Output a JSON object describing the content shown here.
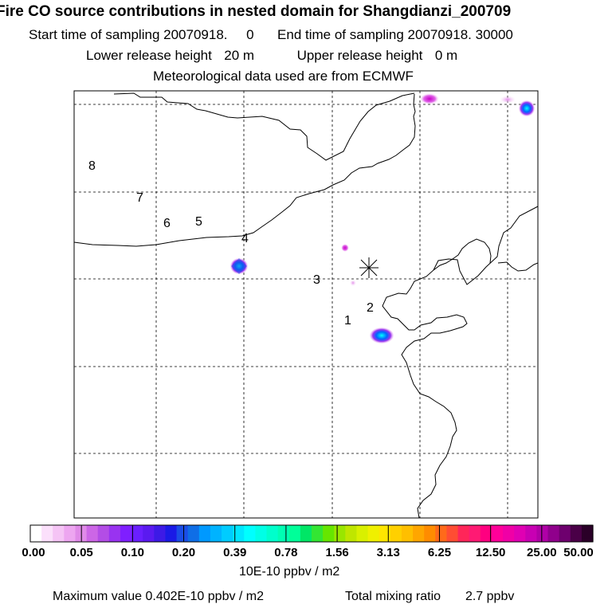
{
  "header": {
    "title": "Fire CO source contributions in nested domain for Shangdianzi_200709",
    "start_label": "Start time of sampling",
    "start_value": "20070918.     0",
    "end_label": "End time of sampling",
    "end_value": "20070918. 30000",
    "lower_label": "Lower release height",
    "lower_value": "20 m",
    "upper_label": "Upper release height",
    "upper_value": "0 m",
    "met_line": "Meteorological data used are from ECMWF"
  },
  "map": {
    "site_marker": "asterisk-receptor",
    "trajectory_labels": [
      "1",
      "2",
      "3",
      "4",
      "5",
      "6",
      "7",
      "8"
    ],
    "sources": [
      {
        "name": "source-nw-plume",
        "strength": "high"
      },
      {
        "name": "source-se-plume",
        "strength": "high"
      },
      {
        "name": "source-ne-corner",
        "strength": "high"
      },
      {
        "name": "source-top-center",
        "strength": "low"
      },
      {
        "name": "source-top-right-faint",
        "strength": "low"
      },
      {
        "name": "source-near-site-1",
        "strength": "low"
      },
      {
        "name": "source-near-site-2",
        "strength": "low"
      }
    ]
  },
  "colorbar": {
    "labels": [
      "0.00",
      "0.05",
      "0.10",
      "0.20",
      "0.39",
      "0.78",
      "1.56",
      "3.13",
      "6.25",
      "12.50",
      "25.00",
      "50.00"
    ],
    "colors": [
      "#ffffff",
      "#fbe0fb",
      "#f5c4f5",
      "#eda6f0",
      "#e08ae8",
      "#cc66e6",
      "#b34de6",
      "#9933f0",
      "#7f1fff",
      "#6a1fff",
      "#5a1af0",
      "#3d1ae6",
      "#1a1ae6",
      "#1a4de6",
      "#0f6ee6",
      "#0099ff",
      "#00b3ff",
      "#00ccff",
      "#00e6ff",
      "#00ffff",
      "#00ffe6",
      "#00ffcc",
      "#00ffb3",
      "#00ff99",
      "#00e666",
      "#33e633",
      "#66e600",
      "#99e600",
      "#bfe600",
      "#d9f000",
      "#f0f000",
      "#ffe600",
      "#ffd000",
      "#ffbf00",
      "#ffa600",
      "#ff8c00",
      "#ff6a1a",
      "#ff4d33",
      "#ff2659",
      "#ff1a73",
      "#ff0080",
      "#ff0099",
      "#f000a6",
      "#e000b3",
      "#c800b3",
      "#b000a6",
      "#90008c",
      "#6e006e",
      "#4a0047",
      "#2a0028"
    ],
    "units": "10E-10 ppbv / m2"
  },
  "footer": {
    "max_label": "Maximum value",
    "max_value": "0.402E-10 ppbv / m2",
    "total_label": "Total mixing ratio",
    "total_value": "2.7 ppbv"
  }
}
